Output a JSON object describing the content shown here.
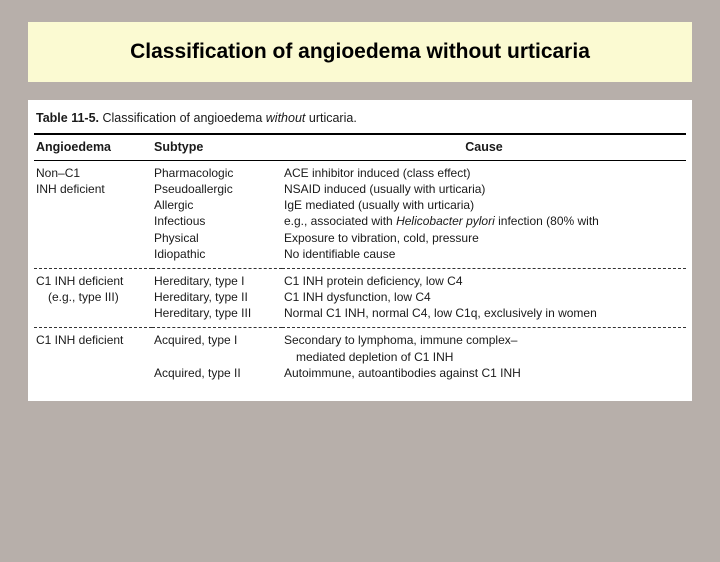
{
  "title": "Classification of angioedema without urticaria",
  "table": {
    "caption_prefix": "Table 11-5.",
    "caption_text1": "Classification of angioedema ",
    "caption_italic": "without",
    "caption_text2": " urticaria.",
    "columns": {
      "c1": "Angioedema",
      "c2": "Subtype",
      "c3": "Cause"
    },
    "rows": [
      {
        "ang_l1": "Non–C1",
        "ang_l2": "INH deficient",
        "sub_l1": "Pharmacologic",
        "sub_l2": "Pseudoallergic",
        "sub_l3": "Allergic",
        "sub_l4": "Infectious",
        "sub_l5": "Physical",
        "sub_l6": "Idiopathic",
        "cause_l1": "ACE inhibitor induced (class effect)",
        "cause_l2": "NSAID induced (usually with urticaria)",
        "cause_l3": "IgE mediated (usually with urticaria)",
        "cause_l4a": "e.g., associated with ",
        "cause_l4b": "Helicobacter pylori",
        "cause_l4c": " infection (80% with",
        "cause_l5": "Exposure to vibration, cold, pressure",
        "cause_l6": "No identifiable cause"
      },
      {
        "ang_l1": "C1 INH deficient",
        "ang_l2": "(e.g., type III)",
        "sub_l1": "Hereditary, type I",
        "sub_l2": "Hereditary, type II",
        "sub_l3": "Hereditary, type III",
        "cause_l1": "C1 INH protein deficiency, low C4",
        "cause_l2": "C1 INH dysfunction, low C4",
        "cause_l3": "Normal C1 INH, normal C4, low C1q, exclusively in women"
      },
      {
        "ang_l1": "C1 INH deficient",
        "sub_l1": "Acquired, type I",
        "sub_l2": "",
        "sub_l3": "Acquired, type II",
        "cause_l1": "Secondary to lymphoma, immune complex–",
        "cause_l2": "mediated depletion of C1 INH",
        "cause_l3": "Autoimmune, autoantibodies against C1 INH"
      }
    ]
  },
  "colors": {
    "page_bg": "#b7afaa",
    "banner_bg": "#fbfad2",
    "table_bg": "#ffffff",
    "text": "#1a1a1a"
  }
}
